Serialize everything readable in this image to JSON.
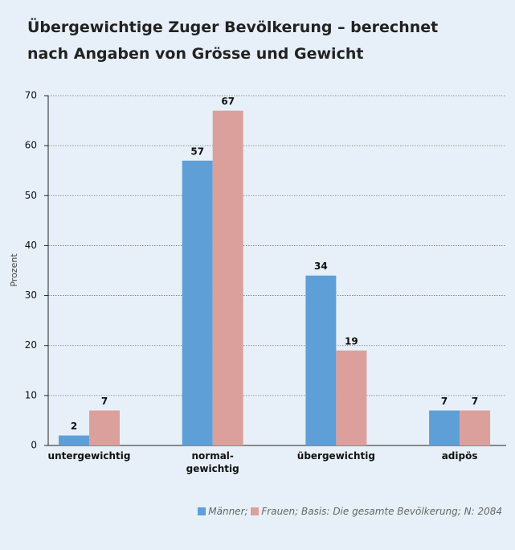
{
  "chart_data": {
    "type": "bar",
    "title": "Übergewichtige Zuger Bevölkerung – berechnet nach Angaben von Grösse und Gewicht",
    "y_label": "Prozent",
    "categories": [
      "untergewichtig",
      "normal-\ngewichtig",
      "übergewichtig",
      "adipös"
    ],
    "series": [
      {
        "name": "Männer;",
        "color": "#5f9fd7",
        "values": [
          2,
          57,
          34,
          7
        ]
      },
      {
        "name": "Frauen;",
        "color": "#dca09c",
        "values": [
          7,
          67,
          19,
          7
        ]
      }
    ],
    "note": "Basis: Die gesamte Bevölkerung; N: 2084",
    "ylim": [
      0,
      70
    ],
    "yticks": [
      0,
      10,
      20,
      30,
      40,
      50,
      60,
      70
    ],
    "grid": true
  }
}
